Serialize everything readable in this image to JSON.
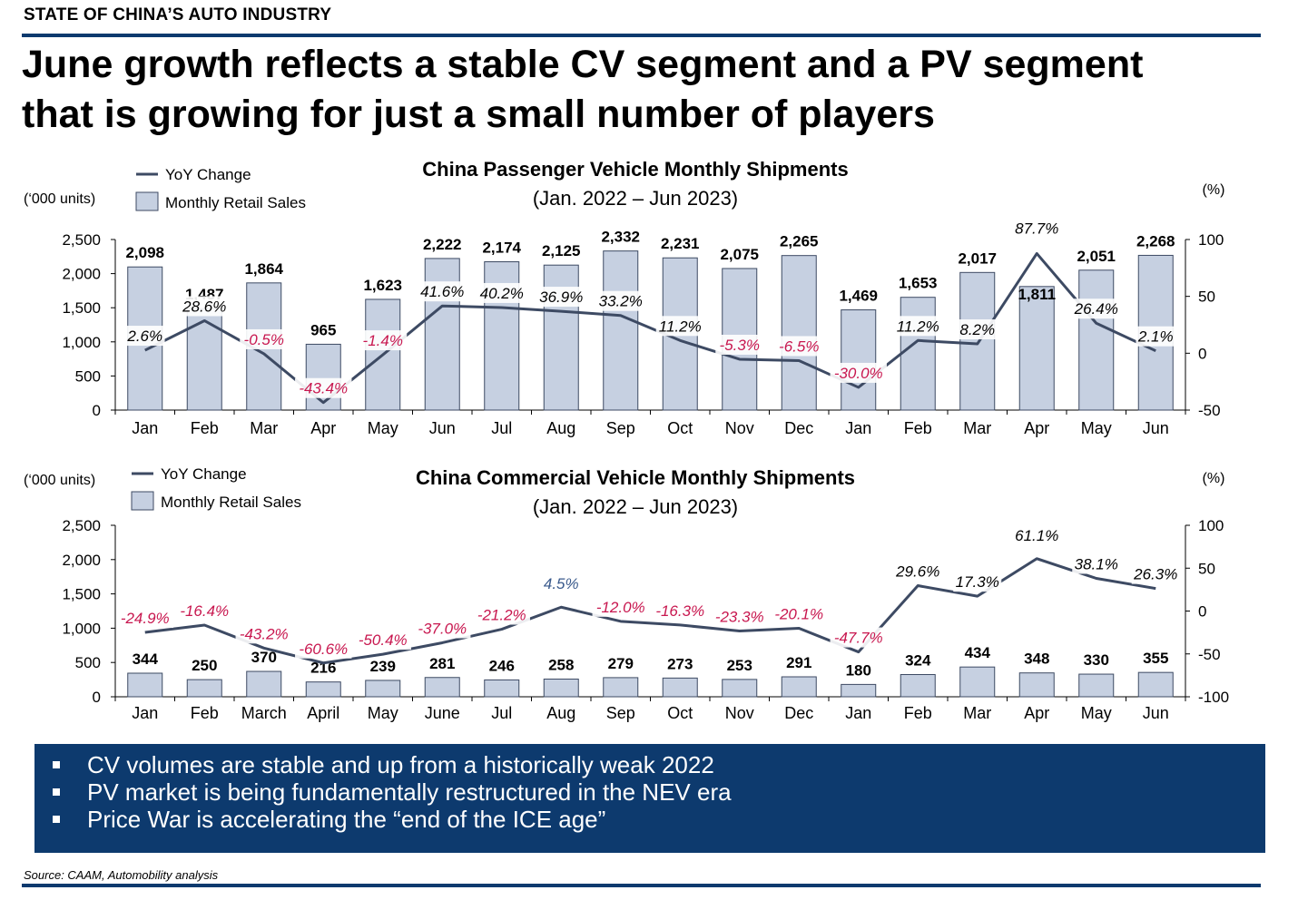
{
  "header": {
    "section": "STATE OF CHINA’S AUTO INDUSTRY",
    "headline_line1": "June growth reflects a stable CV segment and a PV segment",
    "headline_line2": "that is growing for just a small number of players"
  },
  "colors": {
    "navy": "#0d3a6e",
    "bar_fill": "#c6d0e1",
    "bar_stroke": "#3d4a63",
    "line": "#3d4a63",
    "negative_label": "#c8174f",
    "positive_label": "#000000",
    "highlight_label": "#3a5a8c"
  },
  "chart_data": [
    {
      "type": "bar",
      "title": "China Passenger Vehicle Monthly Shipments",
      "subtitle": "(Jan. 2022 – Jun 2023)",
      "ylabel_left": "(‘000 units)",
      "ylabel_right": "(%)",
      "legend": [
        "YoY Change",
        "Monthly Retail Sales"
      ],
      "legend_position": "top-left",
      "categories": [
        "Jan",
        "Feb",
        "Mar",
        "Apr",
        "May",
        "Jun",
        "Jul",
        "Aug",
        "Sep",
        "Oct",
        "Nov",
        "Dec",
        "Jan",
        "Feb",
        "Mar",
        "Apr",
        "May",
        "Jun"
      ],
      "y_ticks": [
        "2,500",
        "2,000",
        "1,500",
        "1,000",
        "500",
        "0"
      ],
      "y2_ticks": [
        "100",
        "50",
        "0",
        "-50"
      ],
      "ylim": [
        0,
        2500
      ],
      "y2lim": [
        -50,
        100
      ],
      "series": [
        {
          "name": "Monthly Retail Sales",
          "kind": "bar",
          "values": [
            2098,
            1487,
            1864,
            965,
            1623,
            2222,
            2174,
            2125,
            2332,
            2231,
            2075,
            2265,
            1469,
            1653,
            2017,
            1811,
            2051,
            2268
          ],
          "labels": [
            "2,098",
            "1,487",
            "1,864",
            "965",
            "1,623",
            "2,222",
            "2,174",
            "2,125",
            "2,332",
            "2,231",
            "2,075",
            "2,265",
            "1,469",
            "1,653",
            "2,017",
            "1,811",
            "2,051",
            "2,268"
          ]
        },
        {
          "name": "YoY Change",
          "kind": "line",
          "axis": "right",
          "values": [
            2.6,
            28.6,
            -0.5,
            -43.4,
            -1.4,
            41.6,
            40.2,
            36.9,
            33.2,
            11.2,
            -5.3,
            -6.5,
            -30.0,
            11.2,
            8.2,
            87.7,
            26.4,
            2.1
          ],
          "labels": [
            "2.6%",
            "28.6%",
            "-0.5%",
            "-43.4%",
            "-1.4%",
            "41.6%",
            "40.2%",
            "36.9%",
            "33.2%",
            "11.2%",
            "-5.3%",
            "-6.5%",
            "-30.0%",
            "11.2%",
            "8.2%",
            "87.7%",
            "26.4%",
            "2.1%"
          ]
        }
      ]
    },
    {
      "type": "bar",
      "title": "China Commercial Vehicle Monthly Shipments",
      "subtitle": "(Jan. 2022 – Jun 2023)",
      "ylabel_left": "(‘000 units)",
      "ylabel_right": "(%)",
      "legend": [
        "YoY Change",
        "Monthly Retail Sales"
      ],
      "legend_position": "top-left",
      "categories": [
        "Jan",
        "Feb",
        "March",
        "April",
        "May",
        "June",
        "Jul",
        "Aug",
        "Sep",
        "Oct",
        "Nov",
        "Dec",
        "Jan",
        "Feb",
        "Mar",
        "Apr",
        "May",
        "Jun"
      ],
      "y_ticks": [
        "2,500",
        "2,000",
        "1,500",
        "1,000",
        "500",
        "0"
      ],
      "y2_ticks": [
        "100",
        "50",
        "0",
        "-50",
        "-100"
      ],
      "ylim": [
        0,
        2500
      ],
      "y2lim": [
        -100,
        100
      ],
      "series": [
        {
          "name": "Monthly Retail Sales",
          "kind": "bar",
          "values": [
            344,
            250,
            370,
            216,
            239,
            281,
            246,
            258,
            279,
            273,
            253,
            291,
            180,
            324,
            434,
            348,
            330,
            355
          ],
          "labels": [
            "344",
            "250",
            "370",
            "216",
            "239",
            "281",
            "246",
            "258",
            "279",
            "273",
            "253",
            "291",
            "180",
            "324",
            "434",
            "348",
            "330",
            "355"
          ]
        },
        {
          "name": "YoY Change",
          "kind": "line",
          "axis": "right",
          "values": [
            -24.9,
            -16.4,
            -43.2,
            -60.6,
            -50.4,
            -37.0,
            -21.2,
            4.5,
            -12.0,
            -16.3,
            -23.3,
            -20.1,
            -47.7,
            29.6,
            17.3,
            61.1,
            38.1,
            26.3
          ],
          "labels": [
            "-24.9%",
            "-16.4%",
            "-43.2%",
            "-60.6%",
            "-50.4%",
            "-37.0%",
            "-21.2%",
            "4.5%",
            "-12.0%",
            "-16.3%",
            "-23.3%",
            "-20.1%",
            "-47.7%",
            "29.6%",
            "17.3%",
            "61.1%",
            "38.1%",
            "26.3%"
          ]
        }
      ]
    }
  ],
  "bullets": [
    "CV volumes are stable and up from a historically weak 2022",
    "PV market is being fundamentally restructured in the NEV era",
    "Price War is accelerating the “end of the ICE age”"
  ],
  "source": "Source: CAAM, Automobility analysis"
}
